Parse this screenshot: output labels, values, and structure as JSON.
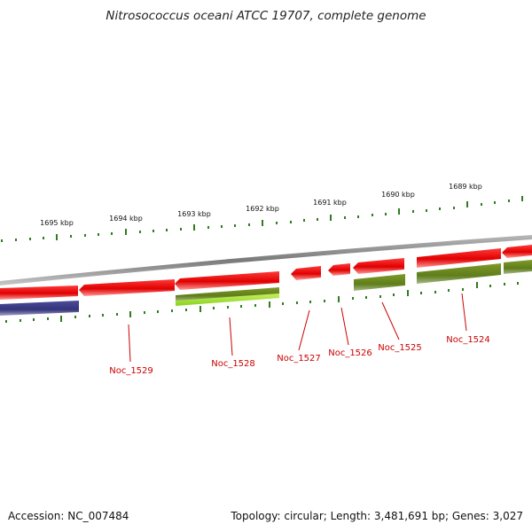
{
  "title": "Nitrosococcus oceani ATCC 19707, complete genome",
  "footer": {
    "accession": "Accession: NC_007484",
    "summary": "Topology: circular; Length: 3,481,691 bp; Genes: 3,027"
  },
  "colors": {
    "forward_cds": "#e60000",
    "reverse_gene": "#6b8e23",
    "highlight_gene": "#9acd32",
    "blue_gene": "#3c3c8c",
    "backbone": "#8a8a8a",
    "tick": "#2f7d1f",
    "label": "#cc0000"
  },
  "kbp_labels": [
    "1695 kbp",
    "1694 kbp",
    "1693 kbp",
    "1692 kbp",
    "1691 kbp",
    "1690 kbp",
    "1689 kbp"
  ],
  "gene_labels": [
    "Noc_1529",
    "Noc_1528",
    "Noc_1527",
    "Noc_1526",
    "Noc_1525",
    "Noc_1524"
  ]
}
